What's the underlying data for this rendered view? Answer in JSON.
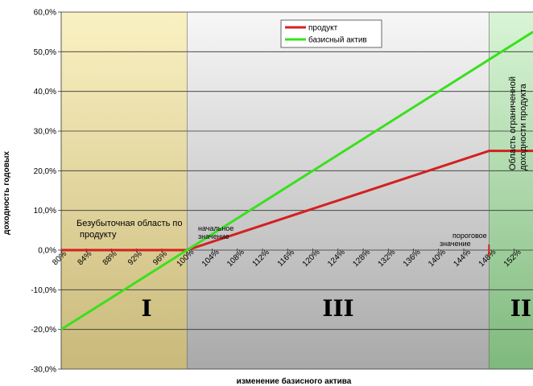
{
  "chart_data": {
    "type": "line",
    "title": "",
    "xlabel": "изменение базисного актива",
    "ylabel": "доходность годовых",
    "y_ticks": [
      "60,0%",
      "50,0%",
      "40,0%",
      "30,0%",
      "20,0%",
      "10,0%",
      "0,0%",
      "-10,0%",
      "-20,0%",
      "-30,0%"
    ],
    "ylim": [
      -30,
      60
    ],
    "x_tick_labels": [
      "80%",
      "84%",
      "88%",
      "92%",
      "96%",
      "100%",
      "104%",
      "108%",
      "112%",
      "116%",
      "120%",
      "124%",
      "128%",
      "132%",
      "136%",
      "140%",
      "144%",
      "148%",
      "152%"
    ],
    "xlim": [
      80,
      155
    ],
    "series": [
      {
        "name": "продукт",
        "color": "#d42020",
        "x": [
          80,
          100,
          148,
          155
        ],
        "values": [
          0,
          0,
          25,
          25
        ]
      },
      {
        "name": "базисный актив",
        "color": "#39e01e",
        "x": [
          80,
          155
        ],
        "values": [
          -20,
          55
        ]
      }
    ],
    "legend_position": "top-center",
    "grid": true,
    "regions": [
      {
        "label": "I",
        "color": "#e8dca0",
        "from": 80,
        "to": 100
      },
      {
        "label": "III",
        "color": "#dedede",
        "from": 100,
        "to": 148
      },
      {
        "label": "II",
        "color": "#b6e0b2",
        "from": 148,
        "to": 155
      }
    ],
    "annotations": {
      "no_loss_region": "Безубыточная область по продукту",
      "initial_value": "начальное значение",
      "threshold_value": "пороговое значение",
      "limited_region": "Область ограниченной доходности продукта"
    }
  }
}
